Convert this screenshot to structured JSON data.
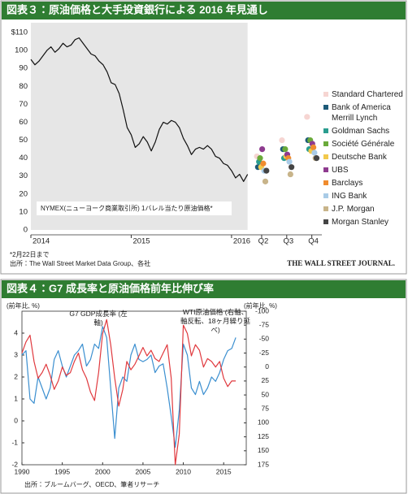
{
  "chart_data": [
    {
      "type": "line",
      "title": "図表３：原油価格と大手投資銀行による 2016 年見通し",
      "annotation": "NYMEX(ニューヨーク商業取引所) 1バレル当たり原油価格*",
      "notes": [
        "*2月22日まで",
        "出所：The Wall Street Market Data Group、各社"
      ],
      "brand": "THE WALL STREET JOURNAL.",
      "x": [
        2014,
        2014.04,
        2014.08,
        2014.12,
        2014.16,
        2014.2,
        2014.24,
        2014.28,
        2014.32,
        2014.36,
        2014.4,
        2014.44,
        2014.48,
        2014.52,
        2014.56,
        2014.6,
        2014.64,
        2014.68,
        2014.72,
        2014.76,
        2014.8,
        2014.84,
        2014.88,
        2014.92,
        2014.96,
        2015,
        2015.04,
        2015.08,
        2015.12,
        2015.16,
        2015.2,
        2015.24,
        2015.28,
        2015.32,
        2015.36,
        2015.4,
        2015.44,
        2015.48,
        2015.52,
        2015.56,
        2015.6,
        2015.64,
        2015.68,
        2015.72,
        2015.76,
        2015.8,
        2015.84,
        2015.88,
        2015.92,
        2015.96,
        2016,
        2016.04,
        2016.08,
        2016.12,
        2016.16
      ],
      "values": [
        95,
        92,
        94,
        97,
        100,
        102,
        99,
        101,
        104,
        102,
        103,
        106,
        107,
        104,
        101,
        98,
        97,
        94,
        92,
        88,
        82,
        81,
        76,
        67,
        57,
        53,
        46,
        48,
        52,
        49,
        44,
        49,
        56,
        60,
        59,
        61,
        60,
        57,
        51,
        47,
        42,
        45,
        46,
        45,
        47,
        45,
        41,
        40,
        37,
        36,
        33,
        29,
        31,
        27,
        31
      ],
      "color": "#111111",
      "xlim": [
        2014,
        2016.9
      ],
      "xticks": [
        2014,
        2015,
        2016,
        {
          "value": 2016.3,
          "label": "Q2"
        },
        {
          "value": 2016.55,
          "label": "Q3"
        },
        {
          "value": 2016.8,
          "label": "Q4"
        }
      ],
      "ylim": [
        0,
        110
      ],
      "yticks": [
        0,
        10,
        20,
        30,
        40,
        50,
        60,
        70,
        80,
        90,
        100,
        {
          "value": 110,
          "label": "$110"
        }
      ],
      "grid": false,
      "forecast_series": [
        {
          "name": "Standard Chartered",
          "color": "#f6d5d2",
          "values": [
            41,
            50,
            63
          ]
        },
        {
          "name": "Bank of America Merrill Lynch",
          "color": "#1d5a78",
          "values": [
            35,
            45,
            50
          ]
        },
        {
          "name": "Goldman Sachs",
          "color": "#2a9d8f",
          "values": [
            38,
            40,
            45
          ]
        },
        {
          "name": "Société Générale",
          "color": "#6aaa3a",
          "values": [
            40,
            45,
            50
          ]
        },
        {
          "name": "Deutsche Bank",
          "color": "#f2c94c",
          "values": [
            35,
            41,
            44
          ]
        },
        {
          "name": "UBS",
          "color": "#8e3b8f",
          "values": [
            45,
            42,
            48
          ]
        },
        {
          "name": "Barclays",
          "color": "#f08c2e",
          "values": [
            37,
            40,
            46
          ]
        },
        {
          "name": "ING Bank",
          "color": "#a9cbe6",
          "values": [
            33,
            38,
            43
          ]
        },
        {
          "name": "J.P. Morgan",
          "color": "#c8b48a",
          "values": [
            27,
            31,
            40
          ]
        },
        {
          "name": "Morgan Stanley",
          "color": "#444444",
          "values": [
            33,
            35,
            40
          ]
        }
      ]
    },
    {
      "type": "line",
      "title": "図表４：G7 成長率と原油価格前年比伸び率",
      "y_label": "(前年比, %)",
      "y2_label": "(前年比, %)",
      "source": "出所：ブルームバーグ、OECD、筆者リサーチ",
      "x": [
        1990,
        1990.5,
        1991,
        1991.5,
        1992,
        1992.5,
        1993,
        1993.5,
        1994,
        1994.5,
        1995,
        1995.5,
        1996,
        1996.5,
        1997,
        1997.5,
        1998,
        1998.5,
        1999,
        1999.5,
        2000,
        2000.5,
        2001,
        2001.5,
        2002,
        2002.5,
        2003,
        2003.5,
        2004,
        2004.5,
        2005,
        2005.5,
        2006,
        2006.5,
        2007,
        2007.5,
        2008,
        2008.5,
        2009,
        2009.5,
        2010,
        2010.5,
        2011,
        2011.5,
        2012,
        2012.5,
        2013,
        2013.5,
        2014,
        2014.5,
        2015,
        2015.5,
        2016,
        2016.5
      ],
      "xlim": [
        1990,
        2017.8
      ],
      "xticks": [
        1990,
        1995,
        2000,
        2005,
        2010,
        2015
      ],
      "ylim": [
        -2,
        5
      ],
      "yticks": [
        -2,
        -1,
        0,
        1,
        2,
        3,
        4
      ],
      "y2lim": [
        175,
        -100
      ],
      "y2ticks": [
        -100,
        -75,
        -50,
        -25,
        0,
        25,
        50,
        75,
        100,
        125,
        150,
        175
      ],
      "grid": false,
      "series": [
        {
          "name": "G7 GDP成長率 (左軸)",
          "color": "#3b8fd0",
          "values": [
            3.0,
            3.2,
            1.0,
            0.8,
            2.0,
            1.5,
            1.0,
            1.5,
            2.8,
            3.2,
            2.5,
            2.0,
            2.5,
            3.0,
            3.2,
            3.5,
            2.5,
            2.8,
            3.5,
            3.3,
            4.3,
            3.8,
            1.5,
            -0.8,
            1.5,
            2.0,
            1.8,
            3.0,
            3.5,
            2.8,
            2.7,
            2.8,
            3.0,
            2.2,
            2.5,
            2.6,
            1.5,
            0.2,
            -1.2,
            0.5,
            3.5,
            3.0,
            1.5,
            1.2,
            1.8,
            1.2,
            1.5,
            2.0,
            1.8,
            2.2,
            2.8,
            3.2,
            3.3,
            3.8
          ]
        },
        {
          "name": "WTI原油価格 (右軸、軸反転、18ヶ月繰り延べ)",
          "color": "#e0393e",
          "axis": "y2",
          "values": [
            -25,
            -45,
            -57,
            -10,
            20,
            10,
            -5,
            15,
            40,
            25,
            0,
            15,
            10,
            -10,
            -25,
            5,
            20,
            45,
            60,
            10,
            -60,
            -85,
            -40,
            20,
            70,
            40,
            -10,
            5,
            -5,
            -20,
            -35,
            -20,
            -30,
            -15,
            -10,
            -25,
            -40,
            20,
            175,
            120,
            -75,
            -60,
            -20,
            -40,
            -30,
            0,
            -15,
            -10,
            0,
            -10,
            20,
            35,
            25,
            25
          ]
        }
      ]
    }
  ]
}
